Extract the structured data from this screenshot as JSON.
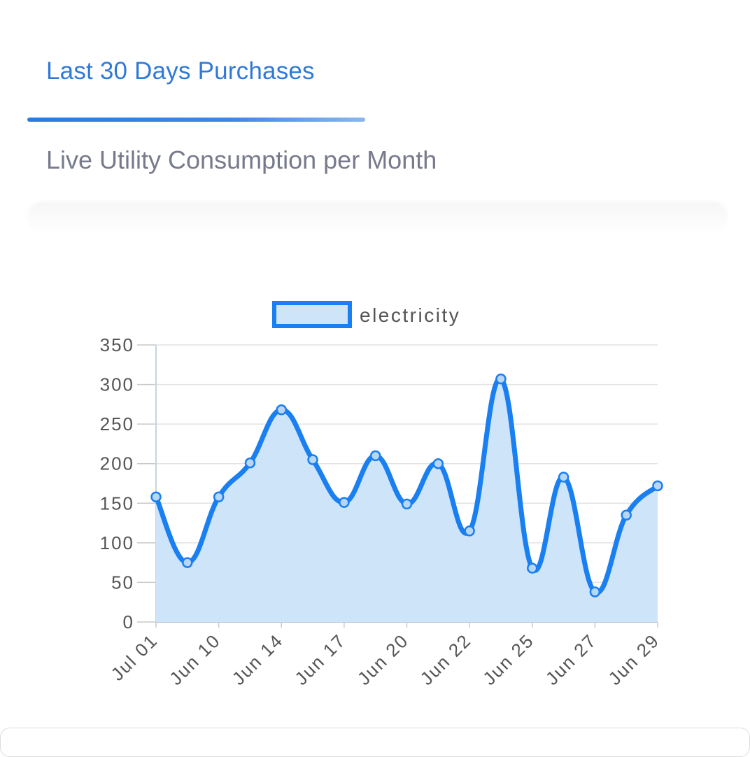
{
  "header": {
    "tab_title": "Last 30 Days Purchases",
    "subtitle": "Live Utility Consumption per Month"
  },
  "colors": {
    "accent": "#2f79d9",
    "line": "#1a7ff0",
    "fill": "#cde4f9",
    "subtitle": "#777a8c"
  },
  "chart_data": {
    "type": "area",
    "title": "",
    "xlabel": "",
    "ylabel": "",
    "ylim": [
      0,
      350
    ],
    "yticks": [
      0,
      50,
      100,
      150,
      200,
      250,
      300,
      350
    ],
    "x": [
      "Jul 01",
      "",
      "Jun 10",
      "",
      "Jun 14",
      "",
      "Jun 17",
      "",
      "Jun 20",
      "",
      "Jun 22",
      "",
      "Jun 25",
      "",
      "Jun 27",
      "",
      "Jun 29"
    ],
    "x_tick_labels": [
      "Jul 01",
      "Jun 10",
      "Jun 14",
      "Jun 17",
      "Jun 20",
      "Jun 22",
      "Jun 25",
      "Jun 27",
      "Jun 29"
    ],
    "series": [
      {
        "name": "electricity",
        "values": [
          158,
          75,
          158,
          201,
          268,
          205,
          151,
          210,
          149,
          200,
          115,
          307,
          68,
          183,
          38,
          135,
          172
        ]
      }
    ],
    "legend": "top",
    "grid": true
  }
}
